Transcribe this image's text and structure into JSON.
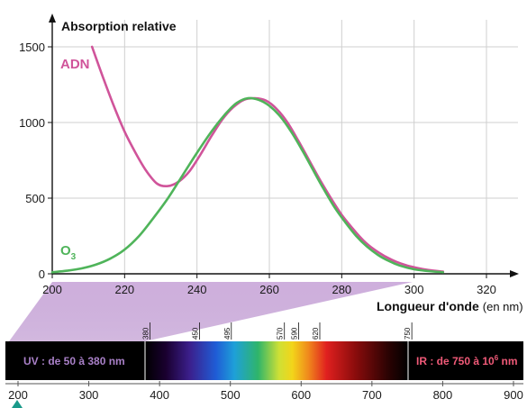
{
  "chart_data": {
    "type": "line",
    "title": "",
    "ylabel": "Absorption relative",
    "xlabel": "Longueur d'onde",
    "xunit": "(en nm)",
    "xlim": [
      200,
      320
    ],
    "ylim": [
      0,
      1500
    ],
    "xticks": [
      200,
      220,
      240,
      260,
      280,
      300,
      320
    ],
    "yticks": [
      0,
      500,
      1000,
      1500
    ],
    "grid": true,
    "series": [
      {
        "name": "ADN",
        "color": "#d0549a",
        "points": [
          [
            211,
            1500
          ],
          [
            214,
            1300
          ],
          [
            217,
            1110
          ],
          [
            220,
            940
          ],
          [
            223,
            800
          ],
          [
            226,
            680
          ],
          [
            229,
            595
          ],
          [
            232,
            580
          ],
          [
            235,
            610
          ],
          [
            238,
            680
          ],
          [
            241,
            790
          ],
          [
            244,
            910
          ],
          [
            247,
            1020
          ],
          [
            250,
            1100
          ],
          [
            253,
            1150
          ],
          [
            256,
            1160
          ],
          [
            259,
            1145
          ],
          [
            262,
            1090
          ],
          [
            265,
            1000
          ],
          [
            268,
            880
          ],
          [
            271,
            750
          ],
          [
            274,
            620
          ],
          [
            277,
            500
          ],
          [
            280,
            390
          ],
          [
            283,
            300
          ],
          [
            286,
            220
          ],
          [
            289,
            160
          ],
          [
            292,
            115
          ],
          [
            295,
            80
          ],
          [
            298,
            55
          ],
          [
            301,
            38
          ],
          [
            304,
            25
          ],
          [
            308,
            14
          ]
        ]
      },
      {
        "name": "O",
        "name_sub": "3",
        "color": "#4fb45a",
        "points": [
          [
            200,
            10
          ],
          [
            204,
            20
          ],
          [
            208,
            35
          ],
          [
            212,
            60
          ],
          [
            216,
            100
          ],
          [
            220,
            160
          ],
          [
            224,
            250
          ],
          [
            228,
            370
          ],
          [
            232,
            500
          ],
          [
            236,
            650
          ],
          [
            240,
            800
          ],
          [
            244,
            940
          ],
          [
            248,
            1060
          ],
          [
            251,
            1130
          ],
          [
            254,
            1160
          ],
          [
            257,
            1150
          ],
          [
            260,
            1110
          ],
          [
            263,
            1040
          ],
          [
            266,
            940
          ],
          [
            269,
            820
          ],
          [
            272,
            690
          ],
          [
            275,
            560
          ],
          [
            278,
            440
          ],
          [
            281,
            340
          ],
          [
            284,
            250
          ],
          [
            287,
            180
          ],
          [
            290,
            125
          ],
          [
            293,
            85
          ],
          [
            296,
            55
          ],
          [
            300,
            30
          ],
          [
            304,
            18
          ],
          [
            308,
            10
          ]
        ]
      }
    ]
  },
  "spectrum": {
    "ticks": [
      200,
      300,
      400,
      500,
      600,
      700,
      800,
      900
    ],
    "visible_marks": [
      "380",
      "450",
      "495",
      "570",
      "590",
      "620",
      "750"
    ],
    "uv_label": "UV : de 50 à 380 nm",
    "ir_label_main": "IR : de 750 à 10",
    "ir_label_sup": "6",
    "ir_label_end": " nm",
    "uv_color": "#a980c8",
    "ir_color": "#f05a78"
  }
}
